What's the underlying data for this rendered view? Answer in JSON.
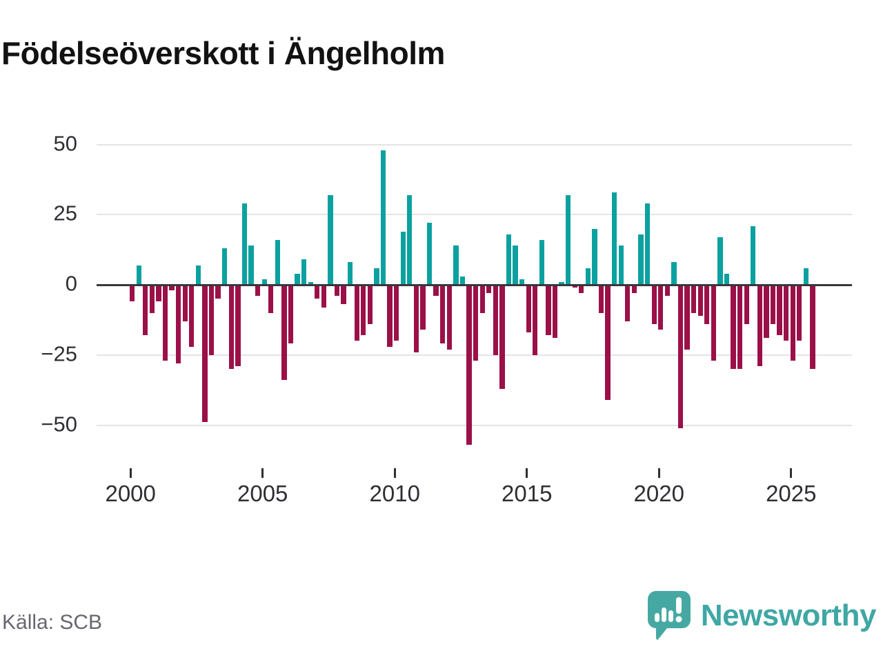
{
  "title": "Födelseöverskott i Ängelholm",
  "source": "Källa: SCB",
  "branding": {
    "name": "Newsworthy"
  },
  "colors": {
    "background": "#ffffff",
    "title": "#121212",
    "positive": "#0ca1a1",
    "negative": "#9b1048",
    "grid": "#e4e4e7",
    "zero_axis": "#37373d",
    "tick_label": "#2e2e33",
    "source_text": "#66666e",
    "brand_teal": "#3fa7a4",
    "logo_bubble": "#46a8a3"
  },
  "chart_data": {
    "type": "bar",
    "title": "Födelseöverskott i Ängelholm",
    "start_year": 2000,
    "period": "quarterly",
    "values": [
      -6,
      7,
      -18,
      -10,
      -6,
      -27,
      -2,
      -28,
      -13,
      -22,
      7,
      -49,
      -25,
      -5,
      13,
      -30,
      -29,
      29,
      14,
      -4,
      2,
      -10,
      16,
      -34,
      -21,
      4,
      9,
      1,
      -5,
      -8,
      32,
      -4,
      -7,
      8,
      -20,
      -18,
      -14,
      6,
      48,
      -22,
      -20,
      19,
      32,
      -24,
      -16,
      22,
      -4,
      -21,
      -23,
      14,
      3,
      -57,
      -27,
      -10,
      -3,
      -25,
      -37,
      18,
      14,
      2,
      -17,
      -25,
      16,
      -18,
      -19,
      1,
      32,
      -1,
      -3,
      6,
      20,
      -10,
      -41,
      33,
      14,
      -13,
      -3,
      18,
      29,
      -14,
      -16,
      -4,
      8,
      -51,
      -23,
      -10,
      -11,
      -14,
      -27,
      17,
      4,
      -30,
      -30,
      -14,
      21,
      -29,
      -19,
      -14,
      -18,
      -20,
      -27,
      -20,
      6,
      -30
    ],
    "yticks": [
      50,
      25,
      0,
      -25,
      -50
    ],
    "ylabels": [
      "50",
      "25",
      "0",
      "−25",
      "−50"
    ],
    "xticks": [
      2000,
      2005,
      2010,
      2015,
      2020,
      2025
    ],
    "xlabels": [
      "2000",
      "2005",
      "2010",
      "2015",
      "2020",
      "2025"
    ],
    "ylim": [
      -60,
      55
    ],
    "grid": "horizontal",
    "legend": "none"
  }
}
